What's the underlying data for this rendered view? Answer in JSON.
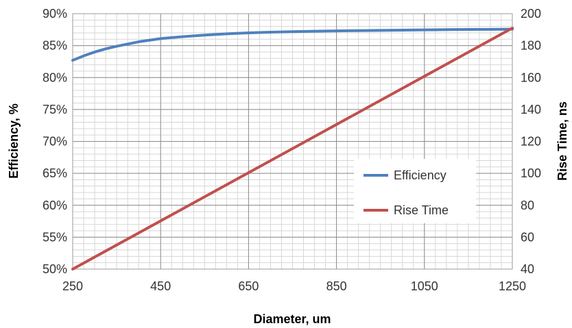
{
  "chart_data": {
    "type": "line",
    "xlabel": "Diameter, um",
    "ylabel_left": "Efficiency, %",
    "ylabel_right": "Rise Time, ns",
    "x_ticks": [
      250,
      450,
      650,
      850,
      1050,
      1250
    ],
    "x_tick_labels": [
      "250",
      "450",
      "650",
      "850",
      "1050",
      "1250"
    ],
    "xlim": [
      250,
      1250
    ],
    "y_left_ticks": [
      50,
      55,
      60,
      65,
      70,
      75,
      80,
      85,
      90
    ],
    "y_left_tick_labels": [
      "50%",
      "55%",
      "60%",
      "65%",
      "70%",
      "75%",
      "80%",
      "85%",
      "90%"
    ],
    "ylim_left": [
      50,
      90
    ],
    "y_right_ticks": [
      40,
      60,
      80,
      100,
      120,
      140,
      160,
      180,
      200
    ],
    "y_right_tick_labels": [
      "40",
      "60",
      "80",
      "100",
      "120",
      "140",
      "160",
      "180",
      "200"
    ],
    "ylim_right": [
      40,
      200
    ],
    "grid": true,
    "legend_position": "right-middle",
    "series": [
      {
        "name": "Efficiency",
        "axis": "left",
        "color": "#4f81bd",
        "x": [
          250,
          275,
          300,
          325,
          350,
          400,
          450,
          500,
          550,
          600,
          650,
          700,
          750,
          800,
          850,
          900,
          950,
          1000,
          1050,
          1100,
          1150,
          1200,
          1250
        ],
        "y": [
          82.7,
          83.4,
          84.0,
          84.5,
          84.9,
          85.6,
          86.1,
          86.4,
          86.65,
          86.85,
          87.0,
          87.1,
          87.18,
          87.25,
          87.3,
          87.35,
          87.39,
          87.43,
          87.47,
          87.5,
          87.53,
          87.55,
          87.57
        ]
      },
      {
        "name": "Rise Time",
        "axis": "right",
        "color": "#c0504d",
        "x": [
          250,
          1250
        ],
        "y": [
          40,
          191
        ]
      }
    ]
  }
}
